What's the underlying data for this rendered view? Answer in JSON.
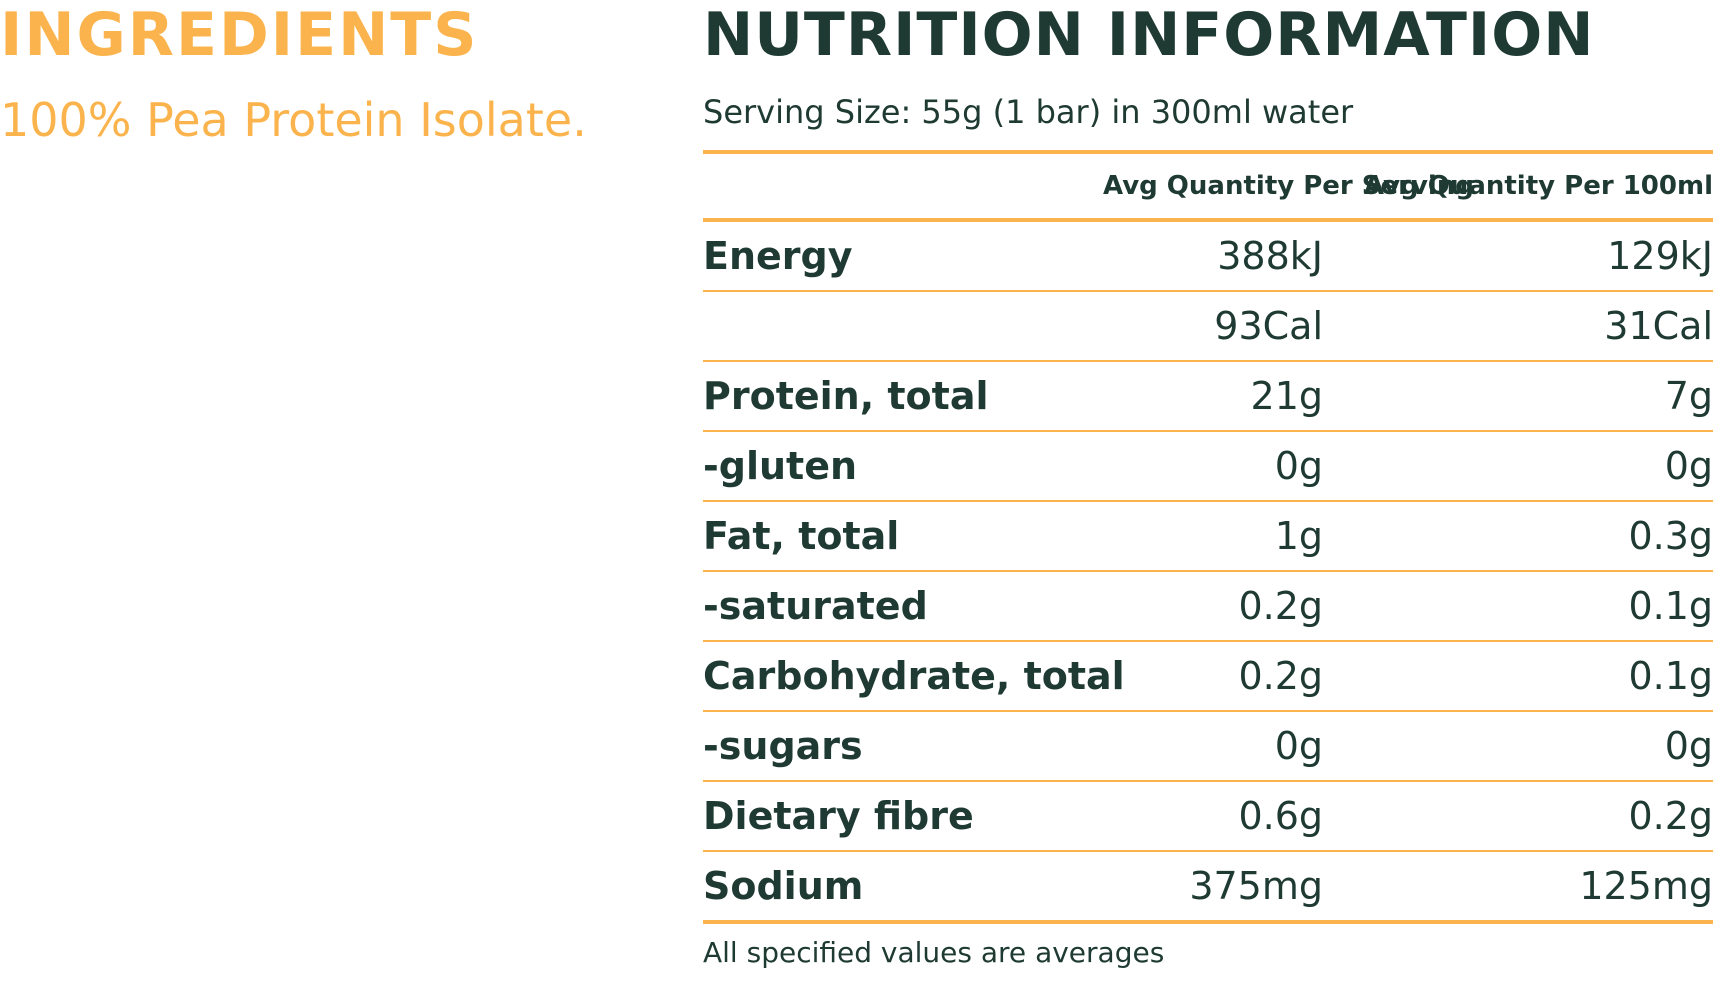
{
  "ingredients": {
    "title": "INGREDIENTS",
    "text": "100% Pea Protein Isolate."
  },
  "nutrition": {
    "title": "NUTRITION INFORMATION",
    "serving_size": "Serving Size: 55g  (1 bar) in 300ml water",
    "columns": [
      "",
      "Avg Quantity Per Serving",
      "Avg Quantity Per 100ml"
    ],
    "rows": [
      {
        "label": "Energy",
        "per_serving": "388kJ",
        "per_100ml": "129kJ"
      },
      {
        "label": "",
        "per_serving": "93Cal",
        "per_100ml": "31Cal"
      },
      {
        "label": "Protein, total",
        "per_serving": "21g",
        "per_100ml": "7g"
      },
      {
        "label": "-gluten",
        "per_serving": "0g",
        "per_100ml": "0g"
      },
      {
        "label": "Fat, total",
        "per_serving": "1g",
        "per_100ml": "0.3g"
      },
      {
        "label": "-saturated",
        "per_serving": "0.2g",
        "per_100ml": "0.1g"
      },
      {
        "label": "Carbohydrate, total",
        "per_serving": "0.2g",
        "per_100ml": "0.1g"
      },
      {
        "label": "-sugars",
        "per_serving": "0g",
        "per_100ml": "0g"
      },
      {
        "label": "Dietary fibre",
        "per_serving": "0.6g",
        "per_100ml": "0.2g"
      },
      {
        "label": "Sodium",
        "per_serving": "375mg",
        "per_100ml": "125mg"
      }
    ],
    "footnote": "All specified values are averages"
  },
  "colors": {
    "accent": "#fbb44d",
    "text": "#1e3a32"
  }
}
